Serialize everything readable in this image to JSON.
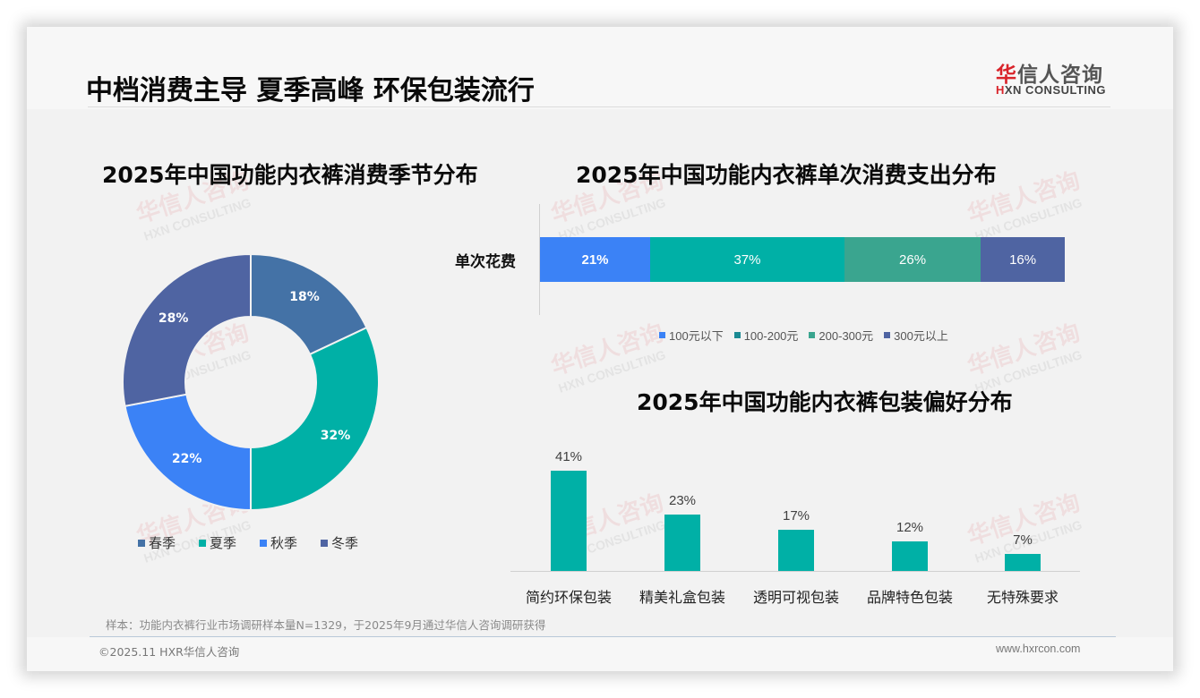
{
  "header": {
    "title": "中档消费主导 夏季高峰 环保包装流行",
    "logo": {
      "cn_accent": "华",
      "cn_rest": "信人咨询",
      "en_accent": "H",
      "en_rest": "XN CONSULTING"
    }
  },
  "watermark": {
    "cn": "华信人咨询",
    "en": "HXN CONSULTING"
  },
  "colors": {
    "spring": "#4472a6",
    "summer": "#00b0a6",
    "autumn": "#3b82f6",
    "winter": "#4f64a2",
    "spend_lt100": "#3b82f6",
    "spend_100_200": "#00b0a6",
    "spend_200_300": "#3aa58f",
    "spend_gt300": "#4f64a2",
    "spend_legend_100_200": "#1b8a93",
    "column": "#00b0a6"
  },
  "chart_data": [
    {
      "type": "pie",
      "title": "2025年中国功能内衣裤消费季节分布",
      "donut": true,
      "categories": [
        "春季",
        "夏季",
        "秋季",
        "冬季"
      ],
      "values": [
        18,
        32,
        22,
        28
      ],
      "labels": [
        "18%",
        "32%",
        "22%",
        "28%"
      ],
      "legend_position": "bottom"
    },
    {
      "type": "bar",
      "orientation": "horizontal-stacked",
      "title": "2025年中国功能内衣裤单次消费支出分布",
      "categories": [
        "单次花费"
      ],
      "series": [
        {
          "name": "100元以下",
          "values": [
            21
          ],
          "label": "21%"
        },
        {
          "name": "100-200元",
          "values": [
            37
          ],
          "label": "37%"
        },
        {
          "name": "200-300元",
          "values": [
            26
          ],
          "label": "26%"
        },
        {
          "name": "300元以上",
          "values": [
            16
          ],
          "label": "16%"
        }
      ],
      "xlim": [
        0,
        100
      ],
      "legend_position": "bottom"
    },
    {
      "type": "bar",
      "title": "2025年中国功能内衣裤包装偏好分布",
      "categories": [
        "简约环保包装",
        "精美礼盒包装",
        "透明可视包装",
        "品牌特色包装",
        "无特殊要求"
      ],
      "values": [
        41,
        23,
        17,
        12,
        7
      ],
      "labels": [
        "41%",
        "23%",
        "17%",
        "12%",
        "7%"
      ],
      "ylim": [
        0,
        45
      ],
      "grid": false
    }
  ],
  "footer": {
    "note": "样本：功能内衣裤行业市场调研样本量N=1329，于2025年9月通过华信人咨询调研获得",
    "copyright": "©2025.11 HXR华信人咨询",
    "website": "www.hxrcon.com"
  }
}
